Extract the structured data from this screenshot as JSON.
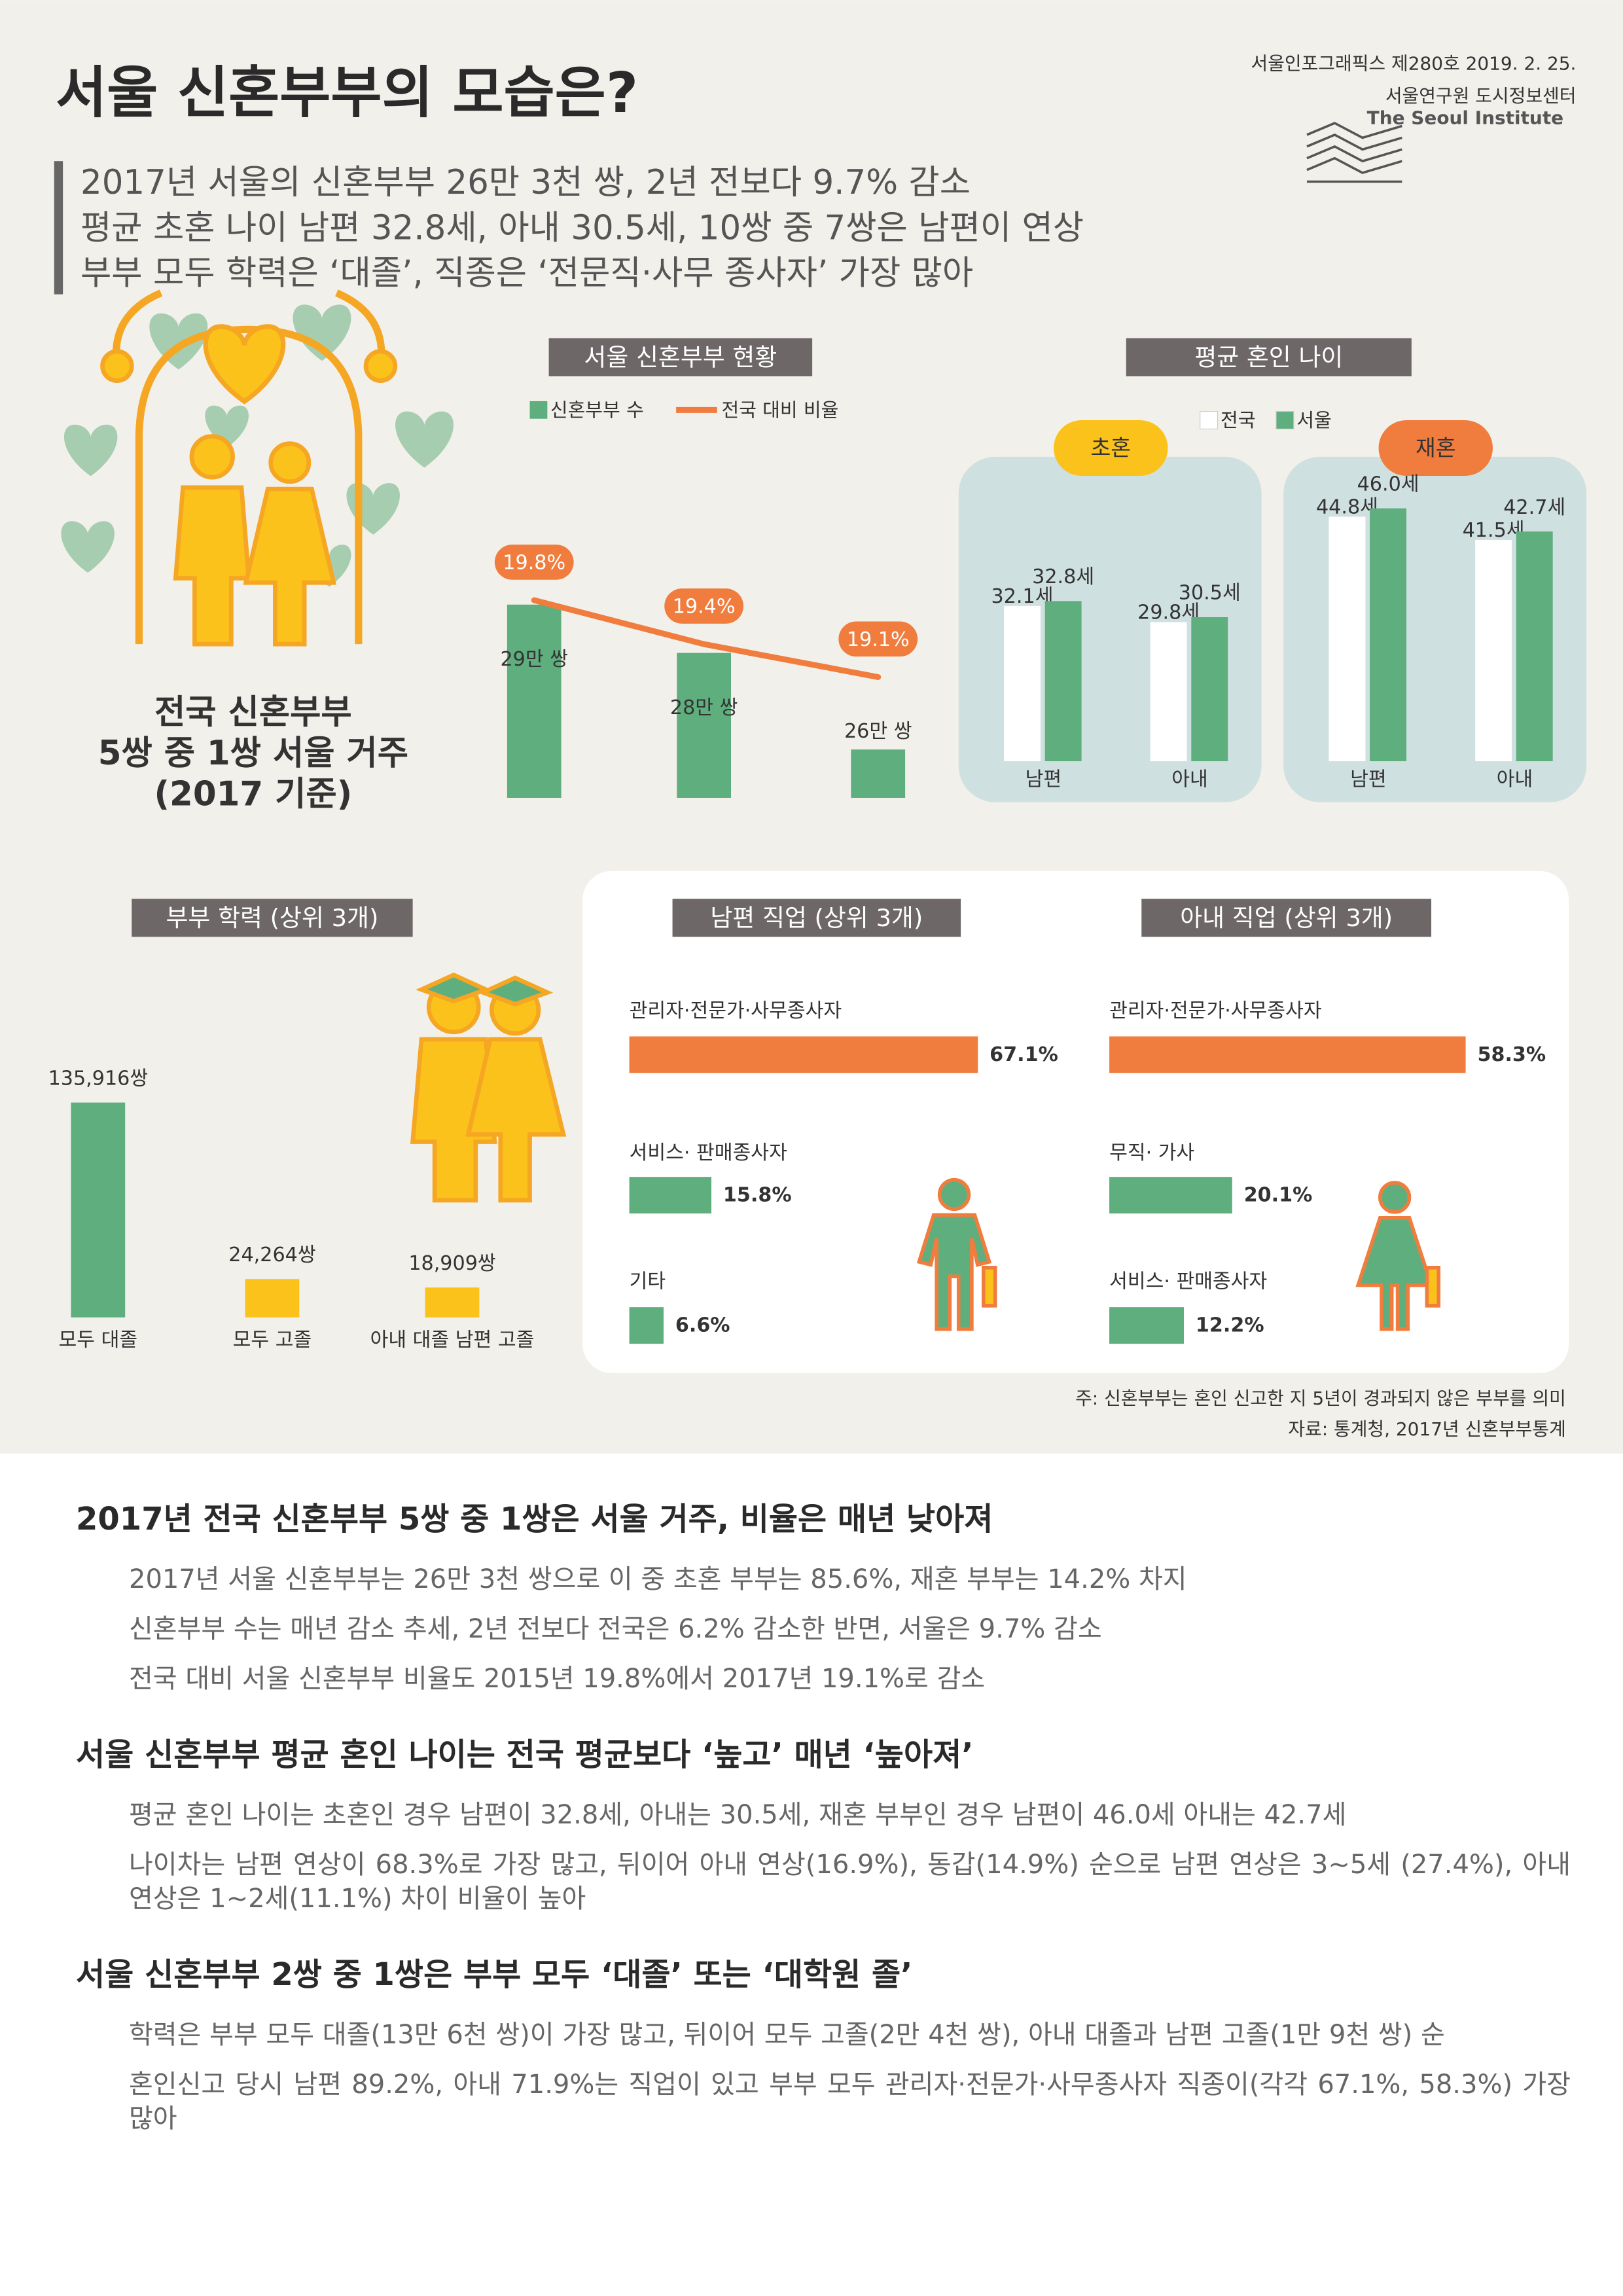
{
  "header": {
    "title": "서울 신혼부부의 모습은?",
    "issue": "서울인포그래픽스 제280호 2019. 2. 25.",
    "publisher": "서울연구원 도시정보센터",
    "publisher_en": "The Seoul Institute"
  },
  "highlights": [
    "2017년 서울의 신혼부부 26만 3천 쌍, 2년 전보다 9.7% 감소",
    "평균 초혼 나이 남편 32.8세, 아내 30.5세, 10쌍 중 7쌍은 남편이 연상",
    "부부 모두 학력은 ‘대졸’, 직종은 ‘전문직·사무 종사자’ 가장 많아"
  ],
  "callout": [
    "전국 신혼부부",
    "5쌍 중 1쌍 서울 거주",
    "(2017 기준)"
  ],
  "chart_data": [
    {
      "type": "bar-line",
      "title": "서울 신혼부부 현황",
      "categories": [
        null,
        null,
        null
      ],
      "series": [
        {
          "name": "신혼부부 수",
          "color": "#5fae7e",
          "values": [
            29,
            28,
            26
          ],
          "value_labels": [
            "29만 쌍",
            "28만 쌍",
            "26만 쌍"
          ]
        },
        {
          "name": "전국 대비 비율",
          "color": "#f07d3e",
          "type": "line",
          "axis": "y2",
          "values": [
            19.8,
            19.4,
            19.1
          ],
          "value_labels": [
            "19.8%",
            "19.4%",
            "19.1%"
          ]
        }
      ],
      "ylim": [
        25,
        30
      ],
      "y2lim": [
        18,
        20.2
      ]
    },
    {
      "type": "grouped-bar",
      "title": "평균 혼인 나이",
      "ylim": [
        10,
        50
      ],
      "panels": [
        {
          "title": "초혼",
          "color": "#fbc21b",
          "categories": [
            "남편",
            "아내"
          ],
          "series": [
            {
              "name": "전국",
              "color": "#ffffff",
              "values": [
                32.1,
                29.8
              ],
              "value_labels": [
                "32.1세",
                "29.8세"
              ]
            },
            {
              "name": "서울",
              "color": "#5fae7e",
              "values": [
                32.8,
                30.5
              ],
              "value_labels": [
                "32.8세",
                "30.5세"
              ]
            }
          ]
        },
        {
          "title": "재혼",
          "color": "#f07d3e",
          "categories": [
            "남편",
            "아내"
          ],
          "series": [
            {
              "name": "전국",
              "color": "#ffffff",
              "values": [
                44.8,
                41.5
              ],
              "value_labels": [
                "44.8세",
                "41.5세"
              ]
            },
            {
              "name": "서울",
              "color": "#5fae7e",
              "values": [
                46.0,
                42.7
              ],
              "value_labels": [
                "46.0세",
                "42.7세"
              ]
            }
          ]
        }
      ]
    },
    {
      "type": "bar",
      "title": "부부 학력 (상위 3개)",
      "categories": [
        "모두 대졸",
        "모두 고졸",
        "아내 대졸 남편 고졸"
      ],
      "values": [
        135916,
        24264,
        18909
      ],
      "value_labels": [
        "135,916쌍",
        "24,264쌍",
        "18,909쌍"
      ],
      "colors": [
        "#5fae7e",
        "#fbc21b",
        "#fbc21b"
      ],
      "ylim": [
        0,
        150000
      ]
    },
    {
      "type": "hbar",
      "title": "남편 직업 (상위 3개)",
      "categories": [
        "관리자·전문가·사무종사자",
        "서비스· 판매종사자",
        "기타"
      ],
      "values": [
        67.1,
        15.8,
        6.6
      ],
      "value_labels": [
        "67.1%",
        "15.8%",
        "6.6%"
      ],
      "colors": [
        "#f07d3e",
        "#5fae7e",
        "#5fae7e"
      ],
      "xlim": [
        0,
        100
      ]
    },
    {
      "type": "hbar",
      "title": "아내 직업 (상위 3개)",
      "categories": [
        "관리자·전문가·사무종사자",
        "무직· 가사",
        "서비스· 판매종사자"
      ],
      "values": [
        58.3,
        20.1,
        12.2
      ],
      "value_labels": [
        "58.3%",
        "20.1%",
        "12.2%"
      ],
      "colors": [
        "#f07d3e",
        "#5fae7e",
        "#5fae7e"
      ],
      "xlim": [
        0,
        85
      ]
    }
  ],
  "notes": [
    "주: 신혼부부는 혼인 신고한 지 5년이 경과되지 않은 부부를 의미",
    "자료: 통계청, 2017년 신혼부부통계"
  ],
  "sections": [
    {
      "heading": "2017년 전국 신혼부부 5쌍 중 1쌍은 서울 거주, 비율은 매년 낮아져",
      "paragraphs": [
        "2017년 서울 신혼부부는 26만 3천 쌍으로 이 중 초혼 부부는 85.6%, 재혼 부부는 14.2% 차지",
        "신혼부부 수는 매년 감소 추세, 2년 전보다 전국은 6.2% 감소한 반면, 서울은 9.7% 감소",
        "전국 대비 서울 신혼부부 비율도 2015년 19.8%에서 2017년 19.1%로 감소"
      ]
    },
    {
      "heading": "서울 신혼부부 평균 혼인 나이는 전국 평균보다 ‘높고’ 매년 ‘높아져’",
      "paragraphs": [
        "평균 혼인 나이는 초혼인 경우 남편이 32.8세, 아내는 30.5세, 재혼 부부인 경우 남편이 46.0세 아내는 42.7세",
        "나이차는 남편 연상이 68.3%로 가장 많고, 뒤이어 아내 연상(16.9%), 동갑(14.9%) 순으로 남편 연상은 3~5세 (27.4%), 아내 연상은 1~2세(11.1%) 차이 비율이 높아"
      ]
    },
    {
      "heading": "서울 신혼부부 2쌍 중 1쌍은 부부 모두 ‘대졸’ 또는 ‘대학원 졸’",
      "paragraphs": [
        "학력은 부부 모두 대졸(13만 6천 쌍)이 가장 많고, 뒤이어 모두 고졸(2만 4천 쌍), 아내 대졸과 남편 고졸(1만 9천 쌍) 순",
        "혼인신고 당시 남편 89.2%, 아내 71.9%는 직업이 있고 부부 모두 관리자·전문가·사무종사자 직종이(각각 67.1%, 58.3%) 가장 많아"
      ]
    }
  ]
}
